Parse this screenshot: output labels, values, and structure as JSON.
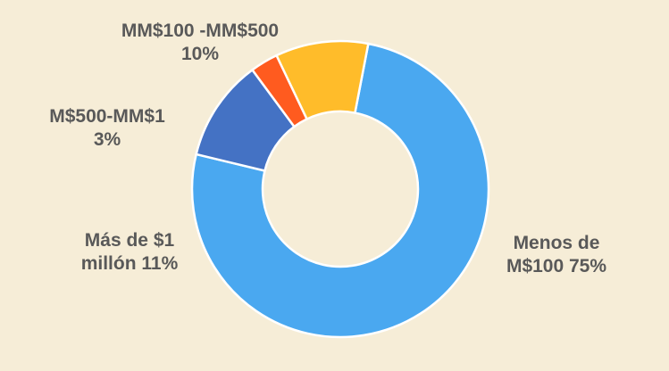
{
  "chart_data": {
    "type": "pie",
    "donut": true,
    "title": "",
    "slices": [
      {
        "label_line1": "Menos de",
        "label_line2": "M$100 75%",
        "percent": 75,
        "color": "#4AA8F0"
      },
      {
        "label_line1": "Más de $1",
        "label_line2": "millón 11%",
        "percent": 11,
        "color": "#4472C4"
      },
      {
        "label_line1": "M$500-MM$1",
        "label_line2": "3%",
        "percent": 3,
        "color": "#FF5B1F"
      },
      {
        "label_line1": "MM$100 -MM$500",
        "label_line2": "10%",
        "percent": 10,
        "color": "#FFBC2A"
      }
    ],
    "legend": "none",
    "background": "#F6EDD7",
    "label_color": "#595959"
  }
}
